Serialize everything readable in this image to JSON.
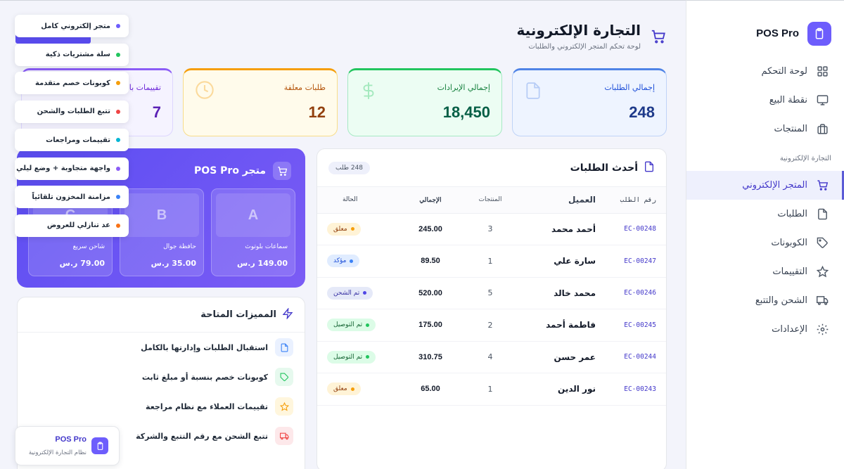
{
  "brand": {
    "name": "POS Pro"
  },
  "sidebar": {
    "items": [
      {
        "label": "لوحة التحكم",
        "icon": "grid-icon"
      },
      {
        "label": "نقطة البيع",
        "icon": "monitor-icon"
      },
      {
        "label": "المنتجات",
        "icon": "briefcase-icon"
      }
    ],
    "section_label": "التجارة الإلكترونية",
    "ecom_items": [
      {
        "label": "المتجر الإلكتروني",
        "icon": "cart-icon",
        "active": true
      },
      {
        "label": "الطلبات",
        "icon": "file-icon"
      },
      {
        "label": "الكوبونات",
        "icon": "tag-icon"
      },
      {
        "label": "التقييمات",
        "icon": "star-icon"
      },
      {
        "label": "الشحن والتتبع",
        "icon": "truck-icon"
      },
      {
        "label": "الإعدادات",
        "icon": "gear-icon"
      }
    ]
  },
  "header": {
    "title": "التجارة الإلكترونية",
    "subtitle": "لوحة تحكم المتجر الإلكتروني والطلبات"
  },
  "stats": [
    {
      "label": "إجمالي الطلبات",
      "value": "248"
    },
    {
      "label": "إجمالي الإيرادات",
      "value": "18,450"
    },
    {
      "label": "طلبات معلقة",
      "value": "12"
    },
    {
      "label": "تقييمات با",
      "value": "7"
    }
  ],
  "orders": {
    "title": "أحدث الطلبات",
    "count_badge": "248 طلب",
    "columns": [
      "رقم الطلب",
      "العميل",
      "المنتجات",
      "الإجمالي",
      "الحالة"
    ],
    "rows": [
      {
        "id": "EC-00248",
        "customer": "أحمد محمد",
        "items": "3",
        "total": "245.00",
        "status": "معلق",
        "kind": "pending"
      },
      {
        "id": "EC-00247",
        "customer": "سارة علي",
        "items": "1",
        "total": "89.50",
        "status": "مؤكد",
        "kind": "confirmed"
      },
      {
        "id": "EC-00246",
        "customer": "محمد خالد",
        "items": "5",
        "total": "520.00",
        "status": "تم الشحن",
        "kind": "shipped"
      },
      {
        "id": "EC-00245",
        "customer": "فاطمة أحمد",
        "items": "2",
        "total": "175.00",
        "status": "تم التوصيل",
        "kind": "delivered"
      },
      {
        "id": "EC-00244",
        "customer": "عمر حسن",
        "items": "4",
        "total": "310.75",
        "status": "تم التوصيل",
        "kind": "delivered"
      },
      {
        "id": "EC-00243",
        "customer": "نور الدين",
        "items": "1",
        "total": "65.00",
        "status": "معلق",
        "kind": "pending"
      }
    ]
  },
  "store": {
    "title": "متجر POS Pro",
    "products": [
      {
        "letter": "A",
        "name": "سماعات بلوتوث",
        "price": "149.00 ر.س"
      },
      {
        "letter": "B",
        "name": "حافظة جوال",
        "price": "35.00 ر.س"
      },
      {
        "letter": "C",
        "name": "شاحن سريع",
        "price": "79.00 ر.س"
      }
    ]
  },
  "features": {
    "title": "المميزات المتاحة",
    "items": [
      "استقبال الطلبات وإدارتها بالكامل",
      "كوبونات خصم بنسبة أو مبلغ ثابت",
      "تقييمات العملاء مع نظام مراجعة",
      "تتبع الشحن مع رقم التتبع والشركة"
    ]
  },
  "floating_list": [
    {
      "label": "متجر إلكتروني كامل",
      "color": "#6d5dfc"
    },
    {
      "label": "سلة مشتريات ذكية",
      "color": "#22c55e"
    },
    {
      "label": "كوبونات خصم متقدمة",
      "color": "#f59e0b"
    },
    {
      "label": "تتبع الطلبات والشحن",
      "color": "#ef4444"
    },
    {
      "label": "تقييمات ومراجعات",
      "color": "#06b6d4"
    },
    {
      "label": "واجهة متجاوبة + وضع ليلي",
      "color": "#8b5cf6"
    },
    {
      "label": "مزامنة المخزون تلقائياً",
      "color": "#3b82f6"
    },
    {
      "label": "عد تنازلي للعروض",
      "color": "#f97316"
    }
  ],
  "mini_brand": {
    "name": "POS Pro",
    "subtitle": "نظام التجارة الإلكترونية"
  },
  "colors": {
    "accent": "#5b4df2"
  }
}
